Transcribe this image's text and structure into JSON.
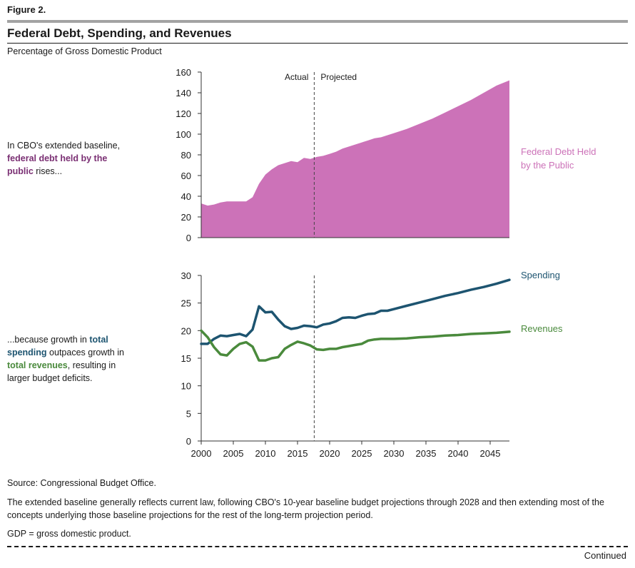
{
  "figure_label": "Figure 2.",
  "title": "Federal Debt, Spending, and Revenues",
  "subtitle": "Percentage of Gross Domestic Product",
  "annotation_top": {
    "before": "In CBO's extended baseline, ",
    "highlight": "federal debt held by the public",
    "after": " rises..."
  },
  "annotation_bottom": {
    "before": "...because growth in ",
    "highlight1": "total spending",
    "middle": " outpaces growth in ",
    "highlight2": "total revenues",
    "after": ", resulting in larger budget deficits."
  },
  "source": "Source: Congressional Budget Office.",
  "note": "The extended baseline generally reflects current law, following CBO's 10-year baseline budget projections through 2028 and then extending most of the concepts underlying those baseline projections for the rest of the long-term projection period.",
  "gdp_note": "GDP = gross domestic product.",
  "continued": "Continued",
  "colors": {
    "debt": "#cc72b8",
    "debt_text": "#7a2f73",
    "spending": "#1d5470",
    "revenues": "#4a8a3c",
    "axis": "#333333"
  },
  "chart_data": [
    {
      "type": "area",
      "name": "debt",
      "title": "",
      "xlabel": "",
      "ylabel": "Percentage of Gross Domestic Product",
      "xlim": [
        2000,
        2048
      ],
      "ylim": [
        0,
        160
      ],
      "yticks": [
        0,
        20,
        40,
        60,
        80,
        100,
        120,
        140,
        160
      ],
      "divider_year": 2017.6,
      "divider_labels": [
        "Actual",
        "Projected"
      ],
      "series": [
        {
          "name": "Federal Debt Held by the Public",
          "label_lines": [
            "Federal Debt Held",
            "by the Public"
          ],
          "x": [
            2000,
            2001,
            2002,
            2003,
            2004,
            2005,
            2006,
            2007,
            2008,
            2009,
            2010,
            2011,
            2012,
            2013,
            2014,
            2015,
            2016,
            2017,
            2018,
            2019,
            2020,
            2021,
            2022,
            2023,
            2024,
            2025,
            2026,
            2027,
            2028,
            2030,
            2032,
            2034,
            2036,
            2038,
            2040,
            2042,
            2044,
            2046,
            2048
          ],
          "values": [
            33,
            31,
            32,
            34,
            35,
            35,
            35,
            35,
            39,
            52,
            61,
            66,
            70,
            72,
            74,
            73,
            77,
            76,
            78,
            79,
            81,
            83,
            86,
            88,
            90,
            92,
            94,
            96,
            97,
            101,
            105,
            110,
            115,
            121,
            127,
            133,
            140,
            147,
            152
          ]
        }
      ]
    },
    {
      "type": "line",
      "name": "spending-revenues",
      "title": "",
      "xlabel": "",
      "ylabel": "",
      "xlim": [
        2000,
        2048
      ],
      "ylim": [
        0,
        30
      ],
      "yticks": [
        0,
        5,
        10,
        15,
        20,
        25,
        30
      ],
      "xticks": [
        2000,
        2005,
        2010,
        2015,
        2020,
        2025,
        2030,
        2035,
        2040,
        2045
      ],
      "divider_year": 2017.6,
      "series": [
        {
          "name": "Spending",
          "color_key": "spending",
          "x": [
            2000,
            2001,
            2002,
            2003,
            2004,
            2005,
            2006,
            2007,
            2008,
            2009,
            2010,
            2011,
            2012,
            2013,
            2014,
            2015,
            2016,
            2017,
            2018,
            2019,
            2020,
            2021,
            2022,
            2023,
            2024,
            2025,
            2026,
            2027,
            2028,
            2029,
            2030,
            2032,
            2034,
            2036,
            2038,
            2040,
            2042,
            2044,
            2046,
            2048
          ],
          "values": [
            17.6,
            17.6,
            18.5,
            19.1,
            19.0,
            19.2,
            19.4,
            19.0,
            20.2,
            24.4,
            23.3,
            23.4,
            22.0,
            20.8,
            20.3,
            20.5,
            20.9,
            20.8,
            20.6,
            21.1,
            21.3,
            21.7,
            22.3,
            22.4,
            22.3,
            22.7,
            23.0,
            23.1,
            23.6,
            23.6,
            23.9,
            24.5,
            25.1,
            25.7,
            26.3,
            26.8,
            27.4,
            27.9,
            28.5,
            29.2
          ]
        },
        {
          "name": "Revenues",
          "color_key": "revenues",
          "x": [
            2000,
            2001,
            2002,
            2003,
            2004,
            2005,
            2006,
            2007,
            2008,
            2009,
            2010,
            2011,
            2012,
            2013,
            2014,
            2015,
            2016,
            2017,
            2018,
            2019,
            2020,
            2021,
            2022,
            2023,
            2024,
            2025,
            2026,
            2027,
            2028,
            2030,
            2032,
            2034,
            2036,
            2038,
            2040,
            2042,
            2044,
            2046,
            2048
          ],
          "values": [
            20.0,
            18.8,
            17.0,
            15.7,
            15.5,
            16.7,
            17.6,
            17.9,
            17.1,
            14.6,
            14.6,
            15.0,
            15.2,
            16.7,
            17.4,
            18.0,
            17.7,
            17.3,
            16.6,
            16.5,
            16.7,
            16.7,
            17.0,
            17.2,
            17.4,
            17.6,
            18.2,
            18.4,
            18.5,
            18.5,
            18.6,
            18.8,
            18.9,
            19.1,
            19.2,
            19.4,
            19.5,
            19.6,
            19.8
          ]
        }
      ]
    }
  ]
}
